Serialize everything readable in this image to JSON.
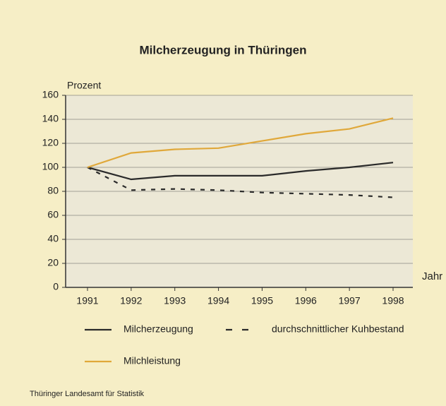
{
  "chart_data": {
    "type": "line",
    "title": "Milcherzeugung in Thüringen",
    "ylabel": "Prozent",
    "xlabel": "Jahr",
    "categories": [
      "1991",
      "1992",
      "1993",
      "1994",
      "1995",
      "1996",
      "1997",
      "1998"
    ],
    "series": [
      {
        "name": "Milcherzeugung",
        "color": "#2a2a2a",
        "dashed": false,
        "values": [
          100,
          90,
          93,
          93,
          93,
          97,
          100,
          104
        ]
      },
      {
        "name": "durchschnittlicher Kuhbestand",
        "color": "#2a2a2a",
        "dashed": true,
        "values": [
          100,
          81,
          82,
          81,
          79,
          78,
          77,
          75
        ]
      },
      {
        "name": "Milchleistung",
        "color": "#e0a83a",
        "dashed": false,
        "values": [
          100,
          112,
          115,
          116,
          122,
          128,
          132,
          141
        ]
      }
    ],
    "ylim": [
      0,
      160
    ],
    "yticks": [
      0,
      20,
      40,
      60,
      80,
      100,
      120,
      140,
      160
    ],
    "grid": true,
    "source": "Thüringer Landesamt für Statistik"
  }
}
